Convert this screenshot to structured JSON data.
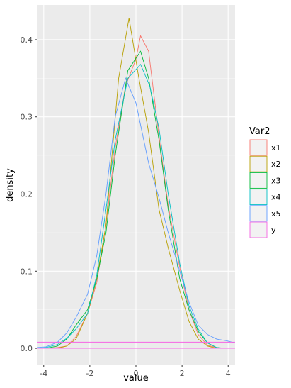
{
  "chart_data": {
    "type": "line",
    "title": "",
    "xlabel": "value",
    "ylabel": "density",
    "xlim": [
      -4.3,
      4.3
    ],
    "ylim": [
      -0.022,
      0.445
    ],
    "x_ticks": [
      -4,
      -2,
      0,
      2,
      4
    ],
    "x_tick_labels": [
      "-4",
      "-2",
      "0",
      "2",
      "4"
    ],
    "y_ticks": [
      0.0,
      0.1,
      0.2,
      0.3,
      0.4
    ],
    "y_tick_labels": [
      "0.0",
      "0.1",
      "0.2",
      "0.3",
      "0.4"
    ],
    "grid": true,
    "legend": {
      "title": "Var2",
      "position": "right"
    },
    "series": [
      {
        "name": "x1",
        "color": "#F8766D",
        "points": [
          [
            -4.3,
            0.0
          ],
          [
            -3.9,
            0.0
          ],
          [
            -3.4,
            0.001
          ],
          [
            -3.0,
            0.003
          ],
          [
            -2.6,
            0.015
          ],
          [
            -2.1,
            0.045
          ],
          [
            -1.7,
            0.085
          ],
          [
            -1.3,
            0.16
          ],
          [
            -0.9,
            0.26
          ],
          [
            -0.45,
            0.34
          ],
          [
            0.0,
            0.375
          ],
          [
            0.2,
            0.405
          ],
          [
            0.55,
            0.385
          ],
          [
            1.0,
            0.275
          ],
          [
            1.4,
            0.185
          ],
          [
            1.9,
            0.105
          ],
          [
            2.3,
            0.05
          ],
          [
            2.7,
            0.018
          ],
          [
            3.1,
            0.004
          ],
          [
            3.5,
            0.001
          ],
          [
            3.9,
            0.0
          ],
          [
            4.3,
            0.0
          ]
        ]
      },
      {
        "name": "x2",
        "color": "#B79F00",
        "points": [
          [
            -4.3,
            0.0
          ],
          [
            -3.9,
            0.0
          ],
          [
            -3.4,
            0.0
          ],
          [
            -3.0,
            0.003
          ],
          [
            -2.6,
            0.012
          ],
          [
            -2.1,
            0.045
          ],
          [
            -1.7,
            0.09
          ],
          [
            -1.3,
            0.16
          ],
          [
            -0.75,
            0.35
          ],
          [
            -0.3,
            0.428
          ],
          [
            0.1,
            0.355
          ],
          [
            0.55,
            0.28
          ],
          [
            1.0,
            0.18
          ],
          [
            1.4,
            0.13
          ],
          [
            1.9,
            0.075
          ],
          [
            2.3,
            0.035
          ],
          [
            2.7,
            0.012
          ],
          [
            3.1,
            0.003
          ],
          [
            3.5,
            0.0
          ],
          [
            4.3,
            0.0
          ]
        ]
      },
      {
        "name": "x3",
        "color": "#00BA38",
        "points": [
          [
            -4.3,
            0.0
          ],
          [
            -3.9,
            0.0
          ],
          [
            -3.4,
            0.003
          ],
          [
            -3.0,
            0.012
          ],
          [
            -2.6,
            0.03
          ],
          [
            -2.1,
            0.05
          ],
          [
            -1.7,
            0.09
          ],
          [
            -1.3,
            0.15
          ],
          [
            -0.9,
            0.25
          ],
          [
            -0.35,
            0.36
          ],
          [
            0.2,
            0.385
          ],
          [
            0.55,
            0.35
          ],
          [
            1.0,
            0.27
          ],
          [
            1.4,
            0.18
          ],
          [
            1.9,
            0.09
          ],
          [
            2.3,
            0.05
          ],
          [
            2.7,
            0.022
          ],
          [
            3.1,
            0.007
          ],
          [
            3.5,
            0.001
          ],
          [
            3.9,
            0.0
          ],
          [
            4.3,
            0.0
          ]
        ]
      },
      {
        "name": "x4",
        "color": "#00BFC4",
        "points": [
          [
            -4.3,
            0.0
          ],
          [
            -3.9,
            0.001
          ],
          [
            -3.4,
            0.005
          ],
          [
            -3.0,
            0.013
          ],
          [
            -2.6,
            0.025
          ],
          [
            -2.1,
            0.045
          ],
          [
            -1.7,
            0.095
          ],
          [
            -1.3,
            0.18
          ],
          [
            -0.9,
            0.27
          ],
          [
            -0.35,
            0.35
          ],
          [
            0.2,
            0.368
          ],
          [
            0.6,
            0.34
          ],
          [
            1.0,
            0.285
          ],
          [
            1.4,
            0.2
          ],
          [
            1.9,
            0.11
          ],
          [
            2.3,
            0.055
          ],
          [
            2.7,
            0.025
          ],
          [
            3.1,
            0.007
          ],
          [
            3.5,
            0.001
          ],
          [
            3.9,
            0.0
          ],
          [
            4.3,
            0.0
          ]
        ]
      },
      {
        "name": "x5",
        "color": "#619CFF",
        "points": [
          [
            -4.3,
            0.001
          ],
          [
            -3.9,
            0.002
          ],
          [
            -3.4,
            0.008
          ],
          [
            -3.0,
            0.02
          ],
          [
            -2.6,
            0.04
          ],
          [
            -2.1,
            0.07
          ],
          [
            -1.7,
            0.12
          ],
          [
            -1.3,
            0.2
          ],
          [
            -0.9,
            0.3
          ],
          [
            -0.45,
            0.35
          ],
          [
            0.0,
            0.318
          ],
          [
            0.55,
            0.24
          ],
          [
            1.0,
            0.195
          ],
          [
            1.4,
            0.15
          ],
          [
            1.9,
            0.1
          ],
          [
            2.3,
            0.06
          ],
          [
            2.7,
            0.03
          ],
          [
            3.1,
            0.018
          ],
          [
            3.5,
            0.012
          ],
          [
            3.9,
            0.01
          ],
          [
            4.3,
            0.007
          ]
        ]
      },
      {
        "name": "y",
        "color": "#F564E3",
        "points": [
          [
            -4.3,
            0.008
          ],
          [
            4.3,
            0.008
          ]
        ]
      }
    ]
  },
  "baseline_color": "#F564E3"
}
